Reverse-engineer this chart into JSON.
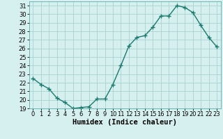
{
  "x": [
    0,
    1,
    2,
    3,
    4,
    5,
    6,
    7,
    8,
    9,
    10,
    11,
    12,
    13,
    14,
    15,
    16,
    17,
    18,
    19,
    20,
    21,
    22,
    23
  ],
  "y": [
    22.5,
    21.8,
    21.3,
    20.2,
    19.7,
    19.0,
    19.1,
    19.2,
    20.1,
    20.1,
    21.8,
    24.0,
    26.3,
    27.3,
    27.5,
    28.5,
    29.8,
    29.8,
    31.0,
    30.8,
    30.2,
    28.7,
    27.3,
    26.2
  ],
  "line_color": "#1a7a6e",
  "marker": "+",
  "marker_size": 4,
  "bg_color": "#d6efef",
  "grid_color": "#a8d0d0",
  "xlabel": "Humidex (Indice chaleur)",
  "xlabel_fontsize": 7.5,
  "ylim": [
    19,
    31.5
  ],
  "yticks": [
    19,
    20,
    21,
    22,
    23,
    24,
    25,
    26,
    27,
    28,
    29,
    30,
    31
  ],
  "xticks": [
    0,
    1,
    2,
    3,
    4,
    5,
    6,
    7,
    8,
    9,
    10,
    11,
    12,
    13,
    14,
    15,
    16,
    17,
    18,
    19,
    20,
    21,
    22,
    23
  ],
  "tick_fontsize": 6,
  "line_width": 1.0
}
